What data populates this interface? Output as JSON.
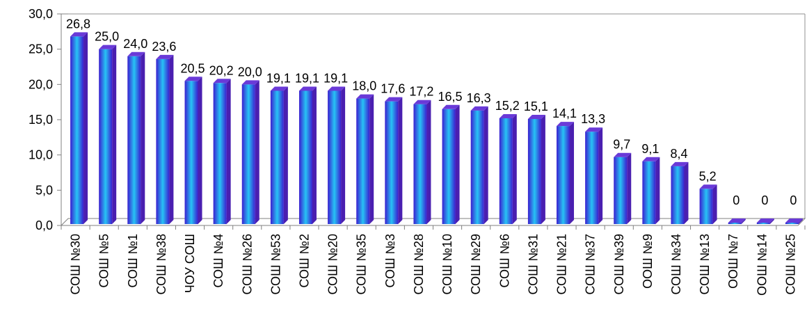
{
  "chart_data": {
    "type": "bar",
    "title": "",
    "xlabel": "",
    "ylabel": "",
    "ylim": [
      0,
      30
    ],
    "yticks": [
      "0,0",
      "5,0",
      "10,0",
      "15,0",
      "20,0",
      "25,0",
      "30,0"
    ],
    "grid": false,
    "legend": "none",
    "categories": [
      "СОШ №30",
      "СОШ №5",
      "СОШ №1",
      "СОШ №38",
      "ЧОУ СОШ",
      "СОШ №4",
      "СОШ №26",
      "СОШ №53",
      "СОШ №2",
      "СОШ №20",
      "СОШ №35",
      "СОШ №3",
      "СОШ №28",
      "СОШ №10",
      "СОШ №29",
      "СОШ №6",
      "СОШ №31",
      "СОШ №21",
      "СОШ №37",
      "СОШ №39",
      "ООШ №9",
      "СОШ №34",
      "СОШ №13",
      "ООШ №7",
      "ООШ №14",
      "СОШ №25"
    ],
    "values": [
      26.8,
      25.0,
      24.0,
      23.6,
      20.5,
      20.2,
      20.0,
      19.1,
      19.1,
      19.1,
      18.0,
      17.6,
      17.2,
      16.5,
      16.3,
      15.2,
      15.1,
      14.1,
      13.3,
      9.7,
      9.1,
      8.4,
      5.2,
      0,
      0,
      0
    ],
    "value_labels": [
      "26,8",
      "25,0",
      "24,0",
      "23,6",
      "20,5",
      "20,2",
      "20,0",
      "19,1",
      "19,1",
      "19,1",
      "18,0",
      "17,6",
      "17,2",
      "16,5",
      "16,3",
      "15,2",
      "15,1",
      "14,1",
      "13,3",
      "9,7",
      "9,1",
      "8,4",
      "5,2",
      "0",
      "0",
      "0"
    ],
    "colors": {
      "bar_dark": "#3a1fd0",
      "bar_light": "#27c3f5",
      "bar_top": "#6a3ad8",
      "bar_side": "#4a1fb0",
      "axis": "#808080"
    }
  }
}
